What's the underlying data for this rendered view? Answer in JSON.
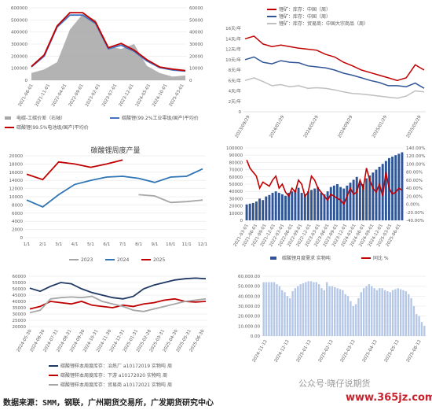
{
  "chart_data": [
    {
      "id": "p1",
      "type": "line",
      "x": [
        "2021-06-01",
        "2021-10-01",
        "2022-02-01",
        "2022-06-01",
        "2022-10-01",
        "2023-02-01",
        "2023-06-01",
        "2023-10-01",
        "2024-02-01",
        "2024-06-01",
        "2024-10-01",
        "2025-02-01",
        "2025-06-01"
      ],
      "x_ticks": [
        "2021-06-01",
        "2021-11-01",
        "2022-04-01",
        "2022-09-01",
        "2023-02-01",
        "2023-07-01",
        "2023-12-01",
        "2024-05-01",
        "2024-10-01",
        "2025-03-01"
      ],
      "ylim": [
        0,
        600000
      ],
      "y_ticks": [
        "0",
        "100000",
        "200000",
        "300000",
        "400000",
        "500000",
        "600000"
      ],
      "y2lim": [
        0,
        60000
      ],
      "y2_ticks": [
        "0",
        "10000",
        "20000",
        "30000",
        "40000",
        "50000",
        "60000"
      ],
      "series": [
        {
          "name": "电碳-工碳价差（右轴）",
          "kind": "area",
          "axis": "right",
          "color": "#a6a6a6",
          "values": [
            6000,
            9000,
            15000,
            42000,
            55000,
            50000,
            28000,
            26000,
            30000,
            12000,
            6000,
            3000,
            4000
          ]
        },
        {
          "name": "碳酸锂(99.2%工业零级/国产)平均价",
          "color": "#4472c4",
          "values": [
            110000,
            200000,
            440000,
            540000,
            540000,
            470000,
            260000,
            290000,
            240000,
            160000,
            105000,
            85000,
            76000
          ]
        },
        {
          "name": "碳酸锂(99.5%电池级/国产)平均价",
          "color": "#c00000",
          "values": [
            115000,
            210000,
            450000,
            560000,
            560000,
            480000,
            270000,
            305000,
            250000,
            170000,
            110000,
            92000,
            80000
          ]
        }
      ]
    },
    {
      "id": "p2",
      "type": "line",
      "x_ticks": [
        "2023/09/29",
        "2024/01/29",
        "2024/05/29",
        "2024/09/29",
        "2025/01/29",
        "2025/05/29"
      ],
      "y_ticks": [
        "0",
        "2天/年",
        "4天/年",
        "6天/年",
        "8天/年",
        "10天/年",
        "12天/年",
        "14天/年",
        "16天/年"
      ],
      "ylim": [
        0,
        16
      ],
      "x": [
        0,
        1,
        2,
        3,
        4,
        5,
        6,
        7,
        8,
        9,
        10,
        11,
        12,
        13,
        14,
        15,
        16,
        17,
        18,
        19,
        20
      ],
      "series": [
        {
          "name": "锂矿：库存：中国（周）",
          "color": "#c00000",
          "values": [
            14,
            14.5,
            13,
            12.5,
            12.8,
            12.5,
            12.2,
            12,
            11.8,
            11,
            10.5,
            9.5,
            8.8,
            8,
            7.5,
            7,
            6.5,
            6,
            6.5,
            9,
            8
          ]
        },
        {
          "name": "锂矿：库存：中国（周）",
          "color": "#2f5597",
          "values": [
            10,
            10.5,
            9.5,
            9.2,
            9.8,
            9.5,
            9.4,
            8.8,
            8.6,
            8.4,
            8,
            7.4,
            7,
            6.5,
            6,
            5.6,
            5,
            5,
            4.8,
            5.5,
            4.5
          ]
        },
        {
          "name": "锂矿：库存：贸易商：中国大宗商品（周）",
          "color": "#bfbfbf",
          "values": [
            6,
            6.5,
            5.8,
            5,
            5.2,
            4.8,
            5,
            4.5,
            4.6,
            4.5,
            4.2,
            3.8,
            3.5,
            3.4,
            3.2,
            3,
            2.8,
            2.6,
            3,
            4,
            3.8
          ]
        }
      ]
    },
    {
      "id": "p3",
      "type": "line",
      "title": "碳酸锂周度产量",
      "categories": [
        "1/1",
        "2/1",
        "3/1",
        "4/1",
        "5/1",
        "6/1",
        "7/1",
        "8/1",
        "9/1",
        "10/1",
        "11/1",
        "12/1"
      ],
      "ylim": [
        0,
        20000
      ],
      "y_ticks": [
        "0",
        "2000",
        "4000",
        "6000",
        "8000",
        "10000",
        "12000",
        "14000",
        "16000",
        "18000",
        "20000"
      ],
      "series": [
        {
          "name": "2023",
          "color": "#a6a6a6",
          "values": [
            null,
            null,
            null,
            null,
            null,
            null,
            null,
            10500,
            10200,
            8600,
            8800,
            9200
          ]
        },
        {
          "name": "2024",
          "color": "#2e75b6",
          "values": [
            9200,
            7500,
            10500,
            13000,
            14000,
            14800,
            15000,
            14500,
            13500,
            14800,
            15000,
            16800
          ]
        },
        {
          "name": "2025",
          "color": "#c00000",
          "values": [
            15500,
            14200,
            18500,
            18000,
            17200,
            18000,
            19000,
            null,
            null,
            null,
            null,
            null
          ]
        }
      ]
    },
    {
      "id": "p4",
      "type": "bar",
      "x_ticks": [
        "2021-03-01",
        "2021-06-01",
        "2021-09-01",
        "2021-12-01",
        "2022-03-01",
        "2022-06-01",
        "2022-09-01",
        "2022-12-01",
        "2023-03-01",
        "2023-06-01",
        "2023-09-01",
        "2023-12-01",
        "2024-03-01",
        "2024-06-01",
        "2024-09-01",
        "2024-12-01",
        "2025-03-01",
        "2025-06-01"
      ],
      "ylim": [
        0,
        100000
      ],
      "y_ticks": [
        "0",
        "10000",
        "20000",
        "30000",
        "40000",
        "50000",
        "60000",
        "70000",
        "80000",
        "90000",
        "100000"
      ],
      "y2lim": [
        -40,
        140
      ],
      "y2_ticks": [
        "-40.00%",
        "-20.00%",
        "0.00%",
        "20.00%",
        "40.00%",
        "60.00%",
        "80.00%",
        "100.00%",
        "120.00%",
        "140.00%"
      ],
      "bars": [
        22000,
        23000,
        24000,
        26000,
        30000,
        28000,
        33000,
        35000,
        38000,
        40000,
        38000,
        36000,
        34000,
        38000,
        40000,
        42000,
        45000,
        38000,
        36000,
        40000,
        42000,
        44000,
        46000,
        38000,
        36000,
        40000,
        46000,
        48000,
        50000,
        46000,
        44000,
        48000,
        52000,
        56000,
        60000,
        52000,
        50000,
        58000,
        62000,
        66000,
        70000,
        74000,
        78000,
        82000,
        86000,
        88000,
        90000,
        92000,
        94000
      ],
      "line": [
        110,
        90,
        80,
        70,
        40,
        55,
        50,
        45,
        60,
        70,
        40,
        50,
        30,
        20,
        40,
        30,
        60,
        50,
        20,
        30,
        70,
        60,
        40,
        30,
        20,
        10,
        25,
        20,
        15,
        10,
        0,
        20,
        40,
        25,
        30,
        60,
        40,
        90,
        60,
        40,
        30,
        50,
        20,
        80,
        40,
        25,
        30,
        40,
        35
      ],
      "series": [
        {
          "name": "碳酸锂月度需求 实物吨",
          "color": "#2f5597"
        },
        {
          "name": "同比 %",
          "color": "#c00000"
        }
      ]
    },
    {
      "id": "p5",
      "type": "line",
      "x_ticks": [
        "2024-05-30",
        "2024-06-30",
        "2024-07-31",
        "2024-08-31",
        "2024-09-30",
        "2024-10-31",
        "2024-11-30",
        "2024-12-31",
        "2025-01-31",
        "2025-02-28",
        "2025-03-31",
        "2025-04-30",
        "2025-05-31",
        "2025-06-30"
      ],
      "ylim": [
        20000,
        60000
      ],
      "y_ticks": [
        "20000",
        "25000",
        "30000",
        "35000",
        "40000",
        "45000",
        "50000",
        "55000",
        "60000"
      ],
      "series": [
        {
          "name": "碳酸锂样本周度库存：冶炼厂 a10172019 实物吨 周",
          "color": "#203864",
          "values": [
            50500,
            48000,
            52000,
            55000,
            54000,
            50000,
            47000,
            45000,
            43000,
            42000,
            44000,
            50000,
            53000,
            55000,
            57000,
            58000,
            58500,
            58000
          ]
        },
        {
          "name": "碳酸锂样本周度库存：下游 a10172020 实物吨 周",
          "color": "#c00000",
          "values": [
            34000,
            36000,
            40000,
            39000,
            38000,
            40000,
            37000,
            36000,
            35000,
            37000,
            36000,
            38000,
            39000,
            41000,
            42000,
            40000,
            39500,
            40000
          ]
        },
        {
          "name": "碳酸锂样本周度库存：贸易商 a10172021 实物吨 周",
          "color": "#a6a6a6",
          "values": [
            31000,
            33000,
            42000,
            43000,
            43500,
            43000,
            44000,
            40000,
            38000,
            36000,
            33000,
            32000,
            34000,
            36000,
            38000,
            40000,
            41000,
            42000
          ]
        }
      ]
    },
    {
      "id": "p6",
      "type": "bar",
      "x_ticks": [
        "2024-11-12",
        "2024-12-12",
        "2025-01-12",
        "2025-02-12",
        "2025-03-12",
        "2025-04-12",
        "2025-05-12",
        "2025-06-12"
      ],
      "ylim": [
        0,
        60000
      ],
      "y_ticks": [
        "0.00",
        "10,000.00",
        "20,000.00",
        "30,000.00",
        "40,000.00",
        "50,000.00",
        "60,000.00"
      ],
      "series": [
        {
          "name": "",
          "color": "#b4c7e7",
          "values": [
            54000,
            54000,
            54000,
            54000,
            54000,
            52000,
            50000,
            46000,
            44000,
            40000,
            38000,
            45000,
            48000,
            50000,
            52000,
            53000,
            54000,
            55000,
            55000,
            54000,
            54000,
            52000,
            48000,
            46000,
            54000,
            50000,
            50000,
            49000,
            48000,
            47000,
            46000,
            42000,
            40000,
            35000,
            30000,
            32000,
            38000,
            44000,
            48000,
            50000,
            52000,
            50000,
            48000,
            46000,
            48000,
            48000,
            46000,
            45000,
            44000,
            46000,
            47000,
            48000,
            47000,
            46000,
            45000,
            42000,
            38000,
            30000,
            22000,
            20000,
            14000,
            10000
          ]
        }
      ]
    }
  ],
  "footer": {
    "source_label": "数据来源：SMM，钢联，广州期货交易所，广发期货研究中心",
    "watermark_text": "公众号·晓仔说期货",
    "site_watermark": "www.365jz.com"
  }
}
